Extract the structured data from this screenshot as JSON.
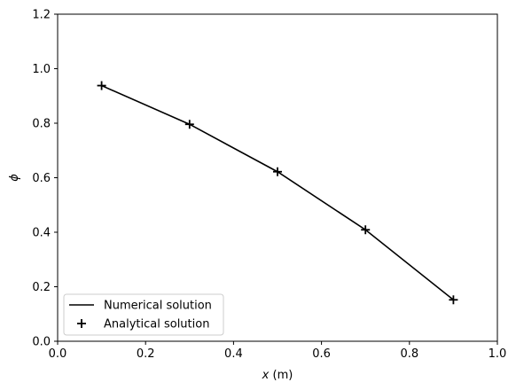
{
  "chart_data": {
    "type": "line",
    "xlabel_var": "x",
    "xlabel_unit": " (m)",
    "ylabel": "ϕ",
    "xlim": [
      0.0,
      1.0
    ],
    "ylim": [
      0.0,
      1.2
    ],
    "xticks": [
      "0.0",
      "0.2",
      "0.4",
      "0.6",
      "0.8",
      "1.0"
    ],
    "yticks": [
      "0.0",
      "0.2",
      "0.4",
      "0.6",
      "0.8",
      "1.0",
      "1.2"
    ],
    "grid": false,
    "legend_position": "lower-left",
    "series": [
      {
        "name": "Numerical solution",
        "style": "line",
        "color": "#000000",
        "x": [
          0.1,
          0.3,
          0.5,
          0.7,
          0.9
        ],
        "y": [
          0.938,
          0.796,
          0.622,
          0.409,
          0.152
        ]
      },
      {
        "name": "Analytical solution",
        "style": "plus-marker",
        "color": "#000000",
        "x": [
          0.1,
          0.3,
          0.5,
          0.7,
          0.9
        ],
        "y": [
          0.938,
          0.796,
          0.622,
          0.409,
          0.152
        ]
      }
    ]
  }
}
